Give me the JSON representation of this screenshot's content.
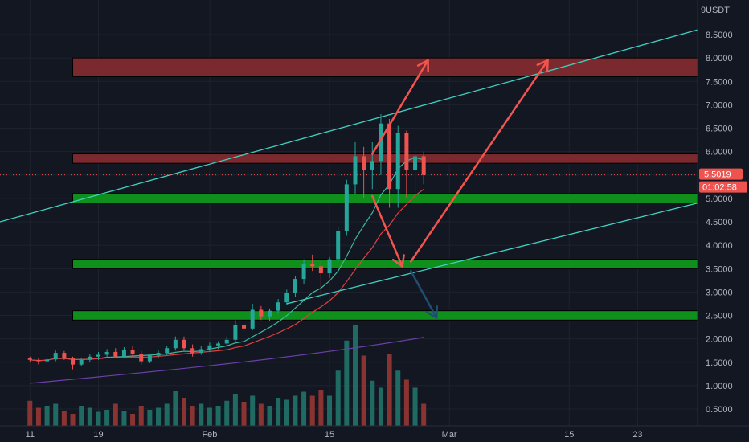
{
  "header": {
    "currency_label": "USDT"
  },
  "price_badge": {
    "last_price": "5.5019",
    "countdown": "01:02:58"
  },
  "colors": {
    "background": "#131722",
    "up": "#26a69a",
    "down": "#ef5350",
    "resistance_zone": "#7a2a2e",
    "support_zone": "#0f8f1c",
    "channel_line": "#3fd1c2",
    "arrow_red": "#f4544f",
    "arrow_blue": "#1e4f73",
    "ma_red": "#e04040",
    "ma_purple": "#6b3fa8",
    "bollinger": "#3fb8a0"
  },
  "chart_data": {
    "type": "candlestick",
    "ylim": [
      0.3,
      9.2
    ],
    "y_ticks": [
      "8.5000",
      "8.0000",
      "7.5000",
      "7.0000",
      "6.5000",
      "6.0000",
      "5.5000",
      "5.0000",
      "4.5000",
      "4.0000",
      "3.5000",
      "3.0000",
      "2.5000",
      "2.0000",
      "1.5000",
      "1.0000",
      "0.5000"
    ],
    "y_tick_values": [
      8.5,
      8.0,
      7.5,
      7.0,
      6.5,
      6.0,
      5.5,
      5.0,
      4.5,
      4.0,
      3.5,
      3.0,
      2.5,
      2.0,
      1.5,
      1.0,
      0.5
    ],
    "x_ticks": [
      "11",
      "19",
      "Feb",
      "15",
      "Mar",
      "15",
      "23"
    ],
    "x_tick_days": [
      0,
      8,
      21,
      35,
      49,
      63,
      71
    ],
    "x_range_days": [
      -3.5,
      78
    ],
    "last_close": 5.5019,
    "zones": [
      {
        "kind": "resistance",
        "low": 7.6,
        "high": 8.0,
        "from_day": 5
      },
      {
        "kind": "resistance",
        "low": 5.75,
        "high": 5.95,
        "from_day": 5
      },
      {
        "kind": "support",
        "low": 4.9,
        "high": 5.1,
        "from_day": 5
      },
      {
        "kind": "support",
        "low": 3.5,
        "high": 3.7,
        "from_day": 5
      },
      {
        "kind": "support",
        "low": 2.4,
        "high": 2.6,
        "from_day": 5
      }
    ],
    "trendlines": [
      {
        "from": [
          -3.5,
          4.5
        ],
        "to": [
          78,
          8.6
        ]
      },
      {
        "from": [
          30,
          2.75
        ],
        "to": [
          78,
          4.9
        ]
      }
    ],
    "arrows": [
      {
        "color": "red",
        "from": [
          40,
          5.95
        ],
        "to": [
          46.5,
          7.95
        ]
      },
      {
        "color": "red",
        "from": [
          40,
          5.05
        ],
        "to": [
          43.5,
          3.55
        ]
      },
      {
        "color": "red",
        "from": [
          44.5,
          3.65
        ],
        "to": [
          60.5,
          7.95
        ]
      },
      {
        "color": "blue",
        "from": [
          44.5,
          3.45
        ],
        "to": [
          47.5,
          2.45
        ]
      }
    ],
    "candles": [
      [
        1.58,
        1.62,
        1.5,
        1.55
      ],
      [
        1.55,
        1.6,
        1.45,
        1.52
      ],
      [
        1.52,
        1.58,
        1.48,
        1.56
      ],
      [
        1.56,
        1.75,
        1.52,
        1.7
      ],
      [
        1.7,
        1.74,
        1.55,
        1.58
      ],
      [
        1.58,
        1.62,
        1.35,
        1.45
      ],
      [
        1.45,
        1.6,
        1.42,
        1.55
      ],
      [
        1.55,
        1.68,
        1.5,
        1.62
      ],
      [
        1.62,
        1.72,
        1.55,
        1.66
      ],
      [
        1.66,
        1.78,
        1.6,
        1.72
      ],
      [
        1.72,
        1.8,
        1.58,
        1.62
      ],
      [
        1.62,
        1.82,
        1.58,
        1.76
      ],
      [
        1.76,
        1.85,
        1.62,
        1.68
      ],
      [
        1.68,
        1.74,
        1.45,
        1.52
      ],
      [
        1.52,
        1.68,
        1.48,
        1.64
      ],
      [
        1.64,
        1.75,
        1.58,
        1.7
      ],
      [
        1.7,
        1.85,
        1.65,
        1.8
      ],
      [
        1.8,
        2.05,
        1.75,
        1.98
      ],
      [
        1.98,
        2.05,
        1.75,
        1.8
      ],
      [
        1.8,
        1.88,
        1.62,
        1.7
      ],
      [
        1.7,
        1.85,
        1.66,
        1.78
      ],
      [
        1.78,
        1.92,
        1.72,
        1.86
      ],
      [
        1.86,
        1.95,
        1.78,
        1.9
      ],
      [
        1.9,
        2.05,
        1.84,
        1.98
      ],
      [
        1.98,
        2.4,
        1.92,
        2.3
      ],
      [
        2.3,
        2.45,
        2.15,
        2.22
      ],
      [
        2.22,
        2.75,
        2.18,
        2.62
      ],
      [
        2.62,
        2.7,
        2.4,
        2.48
      ],
      [
        2.48,
        2.65,
        2.38,
        2.6
      ],
      [
        2.6,
        2.85,
        2.55,
        2.78
      ],
      [
        2.78,
        3.05,
        2.72,
        2.98
      ],
      [
        2.98,
        3.35,
        2.9,
        3.28
      ],
      [
        3.28,
        3.7,
        3.18,
        3.6
      ],
      [
        3.6,
        3.8,
        3.45,
        3.55
      ],
      [
        3.55,
        3.65,
        2.95,
        3.4
      ],
      [
        3.4,
        3.75,
        3.3,
        3.7
      ],
      [
        3.7,
        4.4,
        3.65,
        4.3
      ],
      [
        4.3,
        5.4,
        4.2,
        5.3
      ],
      [
        5.3,
        6.2,
        5.1,
        5.9
      ],
      [
        5.9,
        6.1,
        5.0,
        5.6
      ],
      [
        5.6,
        6.2,
        5.2,
        5.8
      ],
      [
        5.8,
        6.8,
        5.5,
        6.6
      ],
      [
        6.6,
        6.7,
        4.8,
        5.2
      ],
      [
        5.2,
        6.55,
        4.8,
        6.4
      ],
      [
        6.4,
        6.45,
        5.0,
        5.6
      ],
      [
        5.6,
        6.05,
        5.0,
        5.9
      ],
      [
        5.9,
        6.0,
        5.3,
        5.5
      ]
    ],
    "volume": [
      0.25,
      0.18,
      0.2,
      0.22,
      0.15,
      0.12,
      0.2,
      0.18,
      0.14,
      0.16,
      0.22,
      0.15,
      0.12,
      0.2,
      0.16,
      0.18,
      0.22,
      0.35,
      0.28,
      0.2,
      0.22,
      0.18,
      0.2,
      0.25,
      0.32,
      0.24,
      0.3,
      0.22,
      0.2,
      0.28,
      0.26,
      0.3,
      0.34,
      0.3,
      0.36,
      0.3,
      0.55,
      0.85,
      1.0,
      0.7,
      0.45,
      0.38,
      0.72,
      0.55,
      0.46,
      0.38,
      0.22
    ]
  }
}
